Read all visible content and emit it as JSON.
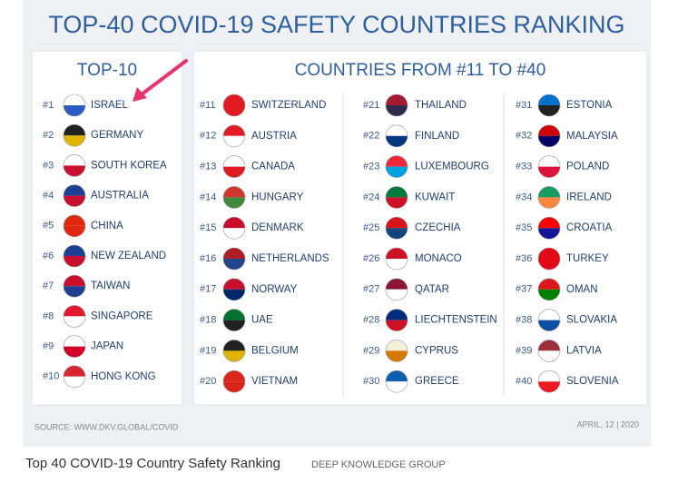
{
  "header": {
    "title": "TOP-40 COVID-19 SAFETY COUNTRIES RANKING"
  },
  "top10": {
    "title": "TOP-10",
    "items": [
      {
        "rank": "#1",
        "name": "ISRAEL"
      },
      {
        "rank": "#2",
        "name": "GERMANY"
      },
      {
        "rank": "#3",
        "name": "SOUTH KOREA"
      },
      {
        "rank": "#4",
        "name": "AUSTRALIA"
      },
      {
        "rank": "#5",
        "name": "CHINA"
      },
      {
        "rank": "#6",
        "name": "NEW ZEALAND"
      },
      {
        "rank": "#7",
        "name": "TAIWAN"
      },
      {
        "rank": "#8",
        "name": "SINGAPORE"
      },
      {
        "rank": "#9",
        "name": "JAPAN"
      },
      {
        "rank": "#10",
        "name": "HONG KONG"
      }
    ]
  },
  "others": {
    "title": "COUNTRIES FROM #11 TO #40",
    "items": [
      {
        "rank": "#11",
        "name": "SWITZERLAND"
      },
      {
        "rank": "#12",
        "name": "AUSTRIA"
      },
      {
        "rank": "#13",
        "name": "CANADA"
      },
      {
        "rank": "#14",
        "name": "HUNGARY"
      },
      {
        "rank": "#15",
        "name": "DENMARK"
      },
      {
        "rank": "#16",
        "name": "NETHERLANDS"
      },
      {
        "rank": "#17",
        "name": "NORWAY"
      },
      {
        "rank": "#18",
        "name": "UAE"
      },
      {
        "rank": "#19",
        "name": "BELGIUM"
      },
      {
        "rank": "#20",
        "name": "VIETNAM"
      },
      {
        "rank": "#21",
        "name": "THAILAND"
      },
      {
        "rank": "#22",
        "name": "FINLAND"
      },
      {
        "rank": "#23",
        "name": "LUXEMBOURG"
      },
      {
        "rank": "#24",
        "name": "KUWAIT"
      },
      {
        "rank": "#25",
        "name": "CZECHIA"
      },
      {
        "rank": "#26",
        "name": "MONACO"
      },
      {
        "rank": "#27",
        "name": "QATAR"
      },
      {
        "rank": "#28",
        "name": "LIECHTENSTEIN"
      },
      {
        "rank": "#29",
        "name": "CYPRUS"
      },
      {
        "rank": "#30",
        "name": "GREECE"
      },
      {
        "rank": "#31",
        "name": "ESTONIA"
      },
      {
        "rank": "#32",
        "name": "MALAYSIA"
      },
      {
        "rank": "#33",
        "name": "POLAND"
      },
      {
        "rank": "#34",
        "name": "IRELAND"
      },
      {
        "rank": "#35",
        "name": "CROATIA"
      },
      {
        "rank": "#36",
        "name": "TURKEY"
      },
      {
        "rank": "#37",
        "name": "OMAN"
      },
      {
        "rank": "#38",
        "name": "SLOVAKIA"
      },
      {
        "rank": "#39",
        "name": "LATVIA"
      },
      {
        "rank": "#40",
        "name": "SLOVENIA"
      }
    ]
  },
  "source": "SOURCE: WWW.DKV.GLOBAL/COVID",
  "date": "APRIL, 12 | 2020",
  "caption": {
    "title": "Top 40 COVID-19 Country Safety Ranking",
    "source": "DEEP KNOWLEDGE GROUP"
  }
}
